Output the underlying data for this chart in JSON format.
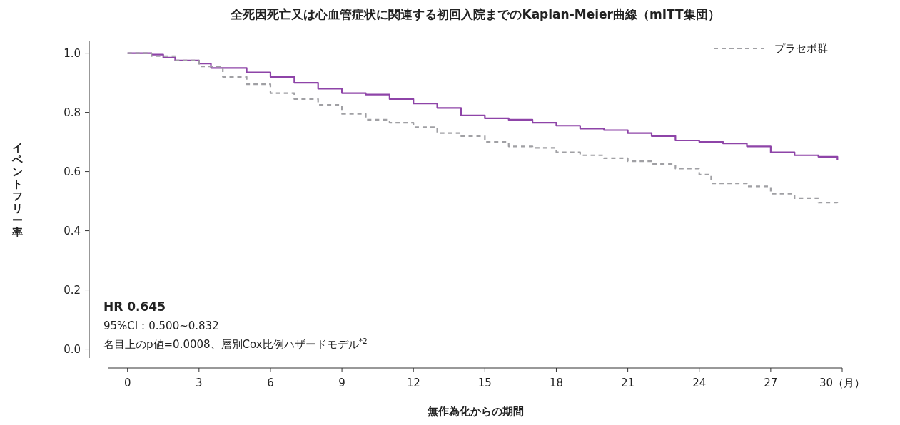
{
  "chart_data": {
    "type": "step",
    "title": "全死因死亡又は心血管症状に関連する初回入院までのKaplan-Meier曲線（mITT集団）",
    "xlabel": "無作為化からの期間",
    "ylabel": "イベントフリー率",
    "x": [
      0,
      1,
      1.5,
      2,
      3,
      3.5,
      5,
      6,
      7,
      8,
      9,
      10,
      11,
      12,
      13,
      14,
      15,
      16,
      17,
      18,
      19,
      20,
      21,
      22,
      23,
      24,
      25,
      26,
      27,
      28,
      29,
      29.8
    ],
    "series": [
      {
        "color": "#8e44a8",
        "line_style": "solid",
        "values": [
          1.0,
          0.995,
          0.985,
          0.975,
          0.965,
          0.95,
          0.935,
          0.92,
          0.9,
          0.88,
          0.865,
          0.86,
          0.845,
          0.83,
          0.815,
          0.79,
          0.78,
          0.775,
          0.765,
          0.755,
          0.745,
          0.74,
          0.73,
          0.72,
          0.705,
          0.7,
          0.695,
          0.685,
          0.665,
          0.655,
          0.65,
          0.64
        ]
      },
      {
        "name": "プラセボ群",
        "color": "#a0a0a4",
        "line_style": "dashed",
        "x": [
          0,
          1,
          2,
          3,
          4,
          5,
          6,
          7,
          8,
          9,
          10,
          11,
          12,
          13,
          14,
          15,
          16,
          17,
          18,
          19,
          20,
          21,
          22,
          23,
          24,
          24.5,
          26,
          27,
          28,
          29,
          29.8
        ],
        "values": [
          1.0,
          0.99,
          0.975,
          0.955,
          0.92,
          0.895,
          0.865,
          0.845,
          0.825,
          0.795,
          0.775,
          0.765,
          0.75,
          0.73,
          0.72,
          0.7,
          0.685,
          0.68,
          0.665,
          0.655,
          0.645,
          0.635,
          0.625,
          0.61,
          0.59,
          0.56,
          0.55,
          0.525,
          0.51,
          0.495,
          0.49
        ]
      }
    ],
    "xlim": [
      -0.8,
      30
    ],
    "xticks": [
      0,
      3,
      6,
      9,
      12,
      15,
      18,
      21,
      24,
      27,
      {
        "value": 30,
        "label": "30（月）"
      }
    ],
    "ylim": [
      -0.03,
      1.04
    ],
    "yticks": [
      {
        "value": 0,
        "label": "0.0"
      },
      {
        "value": 0.2,
        "label": "0.2"
      },
      {
        "value": 0.4,
        "label": "0.4"
      },
      {
        "value": 0.6,
        "label": "0.6"
      },
      {
        "value": 0.8,
        "label": "0.8"
      },
      {
        "value": 1,
        "label": "1.0"
      }
    ],
    "legend": "top right",
    "annotations": [
      "HR 0.645",
      "95%CI：0.500~0.832",
      "名目上のp値=0.0008、層別Cox比例ハザードモデル$^{*2}$"
    ]
  }
}
